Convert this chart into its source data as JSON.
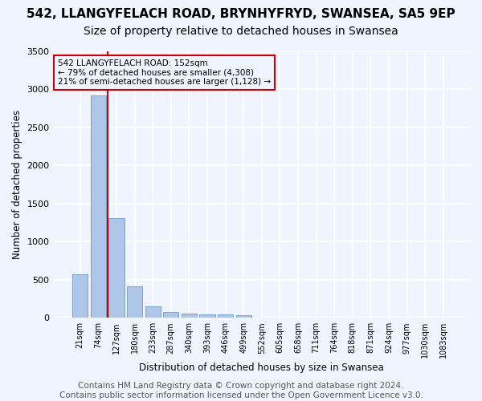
{
  "title1": "542, LLANGYFELACH ROAD, BRYNHYFRYD, SWANSEA, SA5 9EP",
  "title2": "Size of property relative to detached houses in Swansea",
  "xlabel": "Distribution of detached houses by size in Swansea",
  "ylabel": "Number of detached properties",
  "footnote": "Contains HM Land Registry data © Crown copyright and database right 2024.\nContains public sector information licensed under the Open Government Licence v3.0.",
  "bin_labels": [
    "21sqm",
    "74sqm",
    "127sqm",
    "180sqm",
    "233sqm",
    "287sqm",
    "340sqm",
    "393sqm",
    "446sqm",
    "499sqm",
    "552sqm",
    "605sqm",
    "658sqm",
    "711sqm",
    "764sqm",
    "818sqm",
    "871sqm",
    "924sqm",
    "977sqm",
    "1030sqm",
    "1083sqm"
  ],
  "bar_values": [
    570,
    2920,
    1310,
    415,
    155,
    80,
    60,
    50,
    42,
    30,
    0,
    0,
    0,
    0,
    0,
    0,
    0,
    0,
    0,
    0,
    0
  ],
  "bar_color": "#aec6e8",
  "bar_edge_color": "#5a8fc0",
  "vline_x": 1.5,
  "vline_color": "#cc0000",
  "annotation_text": "542 LLANGYFELACH ROAD: 152sqm\n← 79% of detached houses are smaller (4,308)\n21% of semi-detached houses are larger (1,128) →",
  "annotation_box_color": "#cc0000",
  "ylim": [
    0,
    3500
  ],
  "yticks": [
    0,
    500,
    1000,
    1500,
    2000,
    2500,
    3000,
    3500
  ],
  "bg_color": "#f0f4ff",
  "grid_color": "#ffffff",
  "title1_fontsize": 11,
  "title2_fontsize": 10,
  "footnote_fontsize": 7.5
}
